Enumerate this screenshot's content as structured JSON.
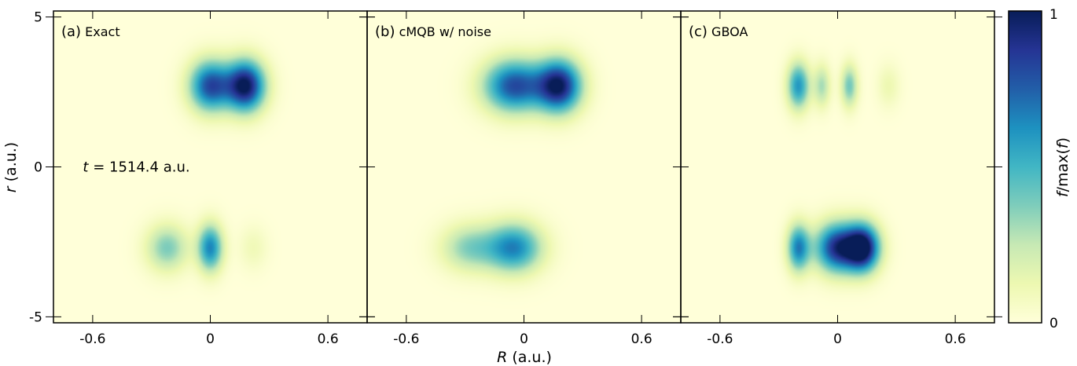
{
  "chart_data": {
    "type": "heatmap",
    "xlabel": "R  (a.u.)",
    "ylabel": "r  (a.u.)",
    "xlim": [
      -0.8,
      0.8
    ],
    "ylim": [
      -5.2,
      5.2
    ],
    "xticks": [
      -0.6,
      0,
      0.6
    ],
    "xtick_labels": [
      "-0.6",
      "0",
      "0.6"
    ],
    "yticks": [
      5,
      0,
      -5
    ],
    "ytick_labels": [
      "5",
      "0",
      "-5"
    ],
    "annotation": {
      "italic": "t",
      "rest": " = 1514.4 a.u.",
      "x": -0.65,
      "y": 0
    },
    "colorbar": {
      "label_italic_f": "f",
      "label_mid": "/max(",
      "label_end": ")",
      "min_label": "0",
      "max_label": "1",
      "colors": [
        "#ffffd9",
        "#edf8b1",
        "#c7e9b4",
        "#7fcdbb",
        "#41b6c4",
        "#1d91c0",
        "#225ea8",
        "#253494",
        "#081d58"
      ]
    },
    "panels": [
      {
        "label": "(a) Exact",
        "blobs": [
          {
            "R": 0.0,
            "r": 2.7,
            "amp": 0.8,
            "sR": 0.075,
            "sr": 0.6
          },
          {
            "R": 0.18,
            "r": 2.7,
            "amp": 1.0,
            "sR": 0.07,
            "sr": 0.6
          },
          {
            "R": -0.22,
            "r": -2.7,
            "amp": 0.38,
            "sR": 0.075,
            "sr": 0.55
          },
          {
            "R": 0.0,
            "r": -2.7,
            "amp": 0.65,
            "sR": 0.045,
            "sr": 0.55
          },
          {
            "R": 0.22,
            "r": -2.7,
            "amp": 0.1,
            "sR": 0.05,
            "sr": 0.5
          }
        ]
      },
      {
        "label": "(b) cMQB w/ noise",
        "blobs": [
          {
            "R": -0.05,
            "r": 2.7,
            "amp": 0.8,
            "sR": 0.11,
            "sr": 0.62
          },
          {
            "R": 0.18,
            "r": 2.7,
            "amp": 0.95,
            "sR": 0.08,
            "sr": 0.62
          },
          {
            "R": -0.28,
            "r": -2.7,
            "amp": 0.35,
            "sR": 0.1,
            "sr": 0.55
          },
          {
            "R": -0.05,
            "r": -2.7,
            "amp": 0.65,
            "sR": 0.1,
            "sr": 0.58
          }
        ]
      },
      {
        "label": "(c) GBOA",
        "blobs": [
          {
            "R": -0.2,
            "r": 2.7,
            "amp": 0.6,
            "sR": 0.04,
            "sr": 0.55
          },
          {
            "R": -0.08,
            "r": 2.7,
            "amp": 0.3,
            "sR": 0.03,
            "sr": 0.5
          },
          {
            "R": 0.06,
            "r": 2.7,
            "amp": 0.4,
            "sR": 0.03,
            "sr": 0.5
          },
          {
            "R": 0.26,
            "r": 2.7,
            "amp": 0.12,
            "sR": 0.04,
            "sr": 0.5
          },
          {
            "R": -0.2,
            "r": -2.7,
            "amp": 0.65,
            "sR": 0.04,
            "sr": 0.55
          },
          {
            "R": 0.0,
            "r": -2.7,
            "amp": 0.9,
            "sR": 0.08,
            "sr": 0.58
          },
          {
            "R": 0.13,
            "r": -2.7,
            "amp": 1.0,
            "sR": 0.06,
            "sr": 0.55
          }
        ]
      }
    ]
  }
}
